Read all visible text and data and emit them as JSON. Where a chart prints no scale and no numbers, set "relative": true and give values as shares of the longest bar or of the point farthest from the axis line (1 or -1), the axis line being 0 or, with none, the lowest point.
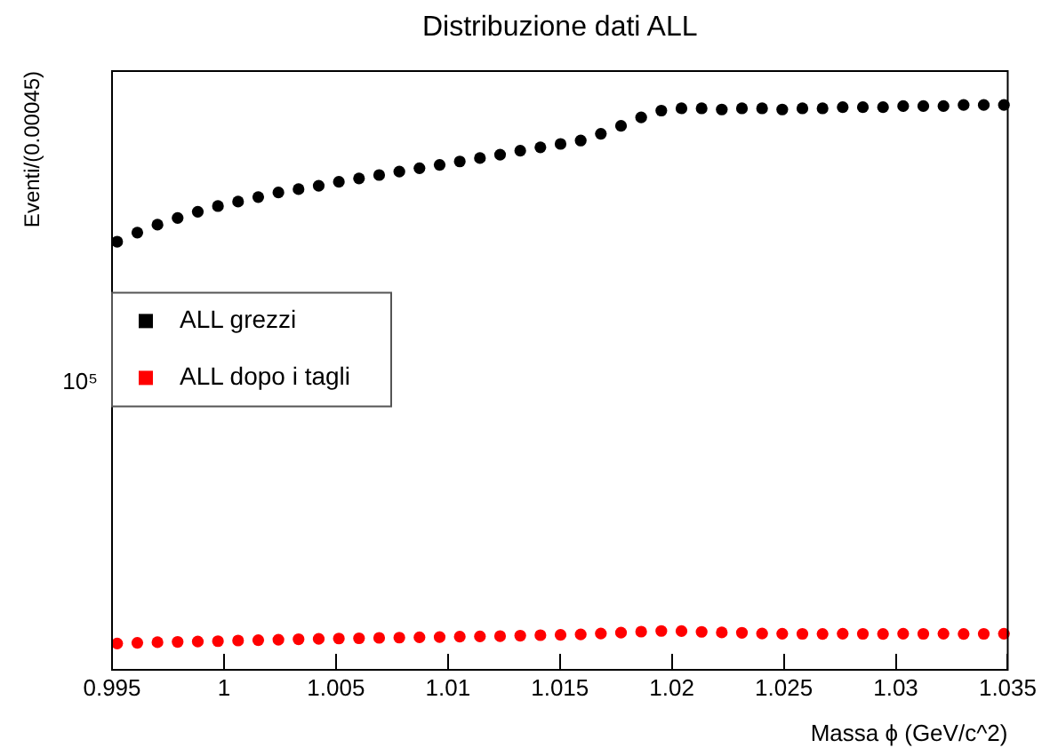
{
  "chart_data": {
    "type": "scatter",
    "title": "Distribuzione dati ALL",
    "xlabel": "Massa ϕ (GeV/c^2)",
    "ylabel": "Eventi/(0.00045)",
    "x": [
      0.99523,
      0.99613,
      0.99703,
      0.99793,
      0.99883,
      0.99973,
      1.00063,
      1.00153,
      1.00243,
      1.00333,
      1.00423,
      1.00513,
      1.00603,
      1.00693,
      1.00783,
      1.00873,
      1.00963,
      1.01053,
      1.01143,
      1.01233,
      1.01323,
      1.01413,
      1.01503,
      1.01593,
      1.01683,
      1.01773,
      1.01863,
      1.01953,
      1.02043,
      1.02133,
      1.02223,
      1.02313,
      1.02403,
      1.02493,
      1.02583,
      1.02673,
      1.02763,
      1.02853,
      1.02943,
      1.03033,
      1.03123,
      1.03213,
      1.03303,
      1.03393,
      1.03483
    ],
    "series": [
      {
        "name": "ALL grezzi",
        "color": "#000000",
        "values": [
          0.758,
          0.774,
          0.788,
          0.8,
          0.811,
          0.821,
          0.829,
          0.837,
          0.845,
          0.851,
          0.857,
          0.864,
          0.87,
          0.876,
          0.882,
          0.888,
          0.894,
          0.9,
          0.906,
          0.912,
          0.919,
          0.925,
          0.931,
          0.937,
          0.949,
          0.963,
          0.978,
          0.99,
          0.994,
          0.994,
          0.992,
          0.994,
          0.994,
          0.992,
          0.994,
          0.994,
          0.996,
          0.996,
          0.996,
          0.998,
          0.998,
          0.998,
          1,
          1,
          1
        ]
      },
      {
        "name": "ALL dopo i tagli",
        "color": "#ff0000",
        "values": [
          0.0466,
          0.0479,
          0.0489,
          0.0495,
          0.0501,
          0.0507,
          0.0519,
          0.0525,
          0.0534,
          0.0542,
          0.0548,
          0.0554,
          0.0558,
          0.0566,
          0.057,
          0.0576,
          0.058,
          0.0587,
          0.0591,
          0.0597,
          0.0605,
          0.0613,
          0.0619,
          0.0627,
          0.0642,
          0.0658,
          0.0676,
          0.0688,
          0.0686,
          0.0672,
          0.0662,
          0.0656,
          0.0642,
          0.064,
          0.0637,
          0.0635,
          0.064,
          0.0637,
          0.0635,
          0.064,
          0.0637,
          0.064,
          0.0635,
          0.0637,
          0.064
        ]
      }
    ],
    "xlim": [
      0.995,
      1.035
    ],
    "xticks": [
      0.995,
      1,
      1.005,
      1.01,
      1.015,
      1.02,
      1.025,
      1.03,
      1.035
    ],
    "relative": true,
    "annotations": [
      "10⁵"
    ],
    "marker": "circle",
    "grid": false,
    "legend": "left"
  }
}
